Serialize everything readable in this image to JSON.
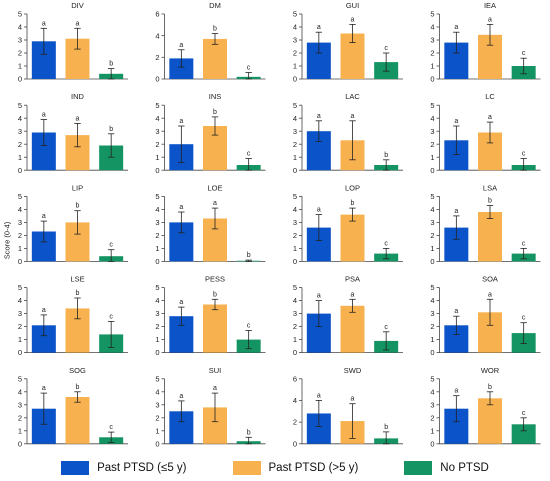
{
  "figure": {
    "ylabel": "Score (0-4)",
    "series_colors": [
      "#0a53c8",
      "#f7b24f",
      "#149463"
    ],
    "legend": [
      {
        "label": "Past PTSD (≤5 y)",
        "color": "#0a53c8"
      },
      {
        "label": "Past PTSD (>5 y)",
        "color": "#f7b24f"
      },
      {
        "label": "No PTSD",
        "color": "#149463"
      }
    ]
  },
  "chart_data": [
    {
      "type": "bar",
      "title": "DIV",
      "ylim": [
        0,
        5
      ],
      "yticks": [
        0,
        1,
        2,
        3,
        4,
        5
      ],
      "series": [
        {
          "name": "Past PTSD (≤5 y)",
          "values": [
            2.9
          ],
          "error": [
            1.0
          ],
          "sig": [
            "a"
          ]
        },
        {
          "name": "Past PTSD (>5 y)",
          "values": [
            3.1
          ],
          "error": [
            0.8
          ],
          "sig": [
            "a"
          ]
        },
        {
          "name": "No PTSD",
          "values": [
            0.4
          ],
          "error": [
            0.4
          ],
          "sig": [
            "b"
          ]
        }
      ]
    },
    {
      "type": "bar",
      "title": "DM",
      "ylim": [
        0,
        6
      ],
      "yticks": [
        0,
        2,
        4,
        6
      ],
      "series": [
        {
          "name": "Past PTSD (≤5 y)",
          "values": [
            1.9
          ],
          "error": [
            0.8
          ],
          "sig": [
            "a"
          ]
        },
        {
          "name": "Past PTSD (>5 y)",
          "values": [
            3.7
          ],
          "error": [
            0.5
          ],
          "sig": [
            "b"
          ]
        },
        {
          "name": "No PTSD",
          "values": [
            0.2
          ],
          "error": [
            0.4
          ],
          "sig": [
            "c"
          ]
        }
      ]
    },
    {
      "type": "bar",
      "title": "GUI",
      "ylim": [
        0,
        5
      ],
      "yticks": [
        0,
        1,
        2,
        3,
        4,
        5
      ],
      "series": [
        {
          "name": "Past PTSD (≤5 y)",
          "values": [
            2.8
          ],
          "error": [
            0.8
          ],
          "sig": [
            "a"
          ]
        },
        {
          "name": "Past PTSD (>5 y)",
          "values": [
            3.5
          ],
          "error": [
            0.7
          ],
          "sig": [
            "a"
          ]
        },
        {
          "name": "No PTSD",
          "values": [
            1.3
          ],
          "error": [
            0.7
          ],
          "sig": [
            "c"
          ]
        }
      ]
    },
    {
      "type": "bar",
      "title": "IEA",
      "ylim": [
        0,
        5
      ],
      "yticks": [
        0,
        1,
        2,
        3,
        4,
        5
      ],
      "series": [
        {
          "name": "Past PTSD (≤5 y)",
          "values": [
            2.8
          ],
          "error": [
            0.8
          ],
          "sig": [
            "a"
          ]
        },
        {
          "name": "Past PTSD (>5 y)",
          "values": [
            3.4
          ],
          "error": [
            0.8
          ],
          "sig": [
            "a"
          ]
        },
        {
          "name": "No PTSD",
          "values": [
            1.0
          ],
          "error": [
            0.6
          ],
          "sig": [
            "c"
          ]
        }
      ]
    },
    {
      "type": "bar",
      "title": "IND",
      "ylim": [
        0,
        5
      ],
      "yticks": [
        0,
        1,
        2,
        3,
        4,
        5
      ],
      "series": [
        {
          "name": "Past PTSD (≤5 y)",
          "values": [
            2.9
          ],
          "error": [
            1.0
          ],
          "sig": [
            "a"
          ]
        },
        {
          "name": "Past PTSD (>5 y)",
          "values": [
            2.7
          ],
          "error": [
            0.9
          ],
          "sig": [
            "a"
          ]
        },
        {
          "name": "No PTSD",
          "values": [
            1.9
          ],
          "error": [
            0.9
          ],
          "sig": [
            "b"
          ]
        }
      ]
    },
    {
      "type": "bar",
      "title": "INS",
      "ylim": [
        0,
        5
      ],
      "yticks": [
        0,
        1,
        2,
        3,
        4,
        5
      ],
      "series": [
        {
          "name": "Past PTSD (≤5 y)",
          "values": [
            2.0
          ],
          "error": [
            1.4
          ],
          "sig": [
            "a"
          ]
        },
        {
          "name": "Past PTSD (>5 y)",
          "values": [
            3.4
          ],
          "error": [
            0.7
          ],
          "sig": [
            "b"
          ]
        },
        {
          "name": "No PTSD",
          "values": [
            0.4
          ],
          "error": [
            0.5
          ],
          "sig": [
            "c"
          ]
        }
      ]
    },
    {
      "type": "bar",
      "title": "LAC",
      "ylim": [
        0,
        5
      ],
      "yticks": [
        0,
        1,
        2,
        3,
        4,
        5
      ],
      "series": [
        {
          "name": "Past PTSD (≤5 y)",
          "values": [
            3.0
          ],
          "error": [
            0.8
          ],
          "sig": [
            "a"
          ]
        },
        {
          "name": "Past PTSD (>5 y)",
          "values": [
            2.3
          ],
          "error": [
            1.5
          ],
          "sig": [
            "a"
          ]
        },
        {
          "name": "No PTSD",
          "values": [
            0.4
          ],
          "error": [
            0.4
          ],
          "sig": [
            "b"
          ]
        }
      ]
    },
    {
      "type": "bar",
      "title": "LC",
      "ylim": [
        0,
        5
      ],
      "yticks": [
        0,
        1,
        2,
        3,
        4,
        5
      ],
      "series": [
        {
          "name": "Past PTSD (≤5 y)",
          "values": [
            2.3
          ],
          "error": [
            1.1
          ],
          "sig": [
            "a"
          ]
        },
        {
          "name": "Past PTSD (>5 y)",
          "values": [
            2.9
          ],
          "error": [
            0.8
          ],
          "sig": [
            "a"
          ]
        },
        {
          "name": "No PTSD",
          "values": [
            0.4
          ],
          "error": [
            0.5
          ],
          "sig": [
            "c"
          ]
        }
      ]
    },
    {
      "type": "bar",
      "title": "LIP",
      "ylim": [
        0,
        5
      ],
      "yticks": [
        0,
        1,
        2,
        3,
        4,
        5
      ],
      "series": [
        {
          "name": "Past PTSD (≤5 y)",
          "values": [
            2.3
          ],
          "error": [
            0.8
          ],
          "sig": [
            "a"
          ]
        },
        {
          "name": "Past PTSD (>5 y)",
          "values": [
            3.0
          ],
          "error": [
            0.9
          ],
          "sig": [
            "b"
          ]
        },
        {
          "name": "No PTSD",
          "values": [
            0.4
          ],
          "error": [
            0.5
          ],
          "sig": [
            "c"
          ]
        }
      ]
    },
    {
      "type": "bar",
      "title": "LOE",
      "ylim": [
        0,
        5
      ],
      "yticks": [
        0,
        1,
        2,
        3,
        4,
        5
      ],
      "series": [
        {
          "name": "Past PTSD (≤5 y)",
          "values": [
            3.0
          ],
          "error": [
            0.8
          ],
          "sig": [
            "a"
          ]
        },
        {
          "name": "Past PTSD (>5 y)",
          "values": [
            3.3
          ],
          "error": [
            0.8
          ],
          "sig": [
            "a"
          ]
        },
        {
          "name": "No PTSD",
          "values": [
            0.05
          ],
          "error": [
            0.05
          ],
          "sig": [
            "b"
          ]
        }
      ]
    },
    {
      "type": "bar",
      "title": "LOP",
      "ylim": [
        0,
        5
      ],
      "yticks": [
        0,
        1,
        2,
        3,
        4,
        5
      ],
      "series": [
        {
          "name": "Past PTSD (≤5 y)",
          "values": [
            2.6
          ],
          "error": [
            1.0
          ],
          "sig": [
            "a"
          ]
        },
        {
          "name": "Past PTSD (>5 y)",
          "values": [
            3.6
          ],
          "error": [
            0.5
          ],
          "sig": [
            "b"
          ]
        },
        {
          "name": "No PTSD",
          "values": [
            0.6
          ],
          "error": [
            0.4
          ],
          "sig": [
            "c"
          ]
        }
      ]
    },
    {
      "type": "bar",
      "title": "LSA",
      "ylim": [
        0,
        5
      ],
      "yticks": [
        0,
        1,
        2,
        3,
        4,
        5
      ],
      "series": [
        {
          "name": "Past PTSD (≤5 y)",
          "values": [
            2.6
          ],
          "error": [
            0.9
          ],
          "sig": [
            "a"
          ]
        },
        {
          "name": "Past PTSD (>5 y)",
          "values": [
            3.8
          ],
          "error": [
            0.5
          ],
          "sig": [
            "b"
          ]
        },
        {
          "name": "No PTSD",
          "values": [
            0.6
          ],
          "error": [
            0.4
          ],
          "sig": [
            "c"
          ]
        }
      ]
    },
    {
      "type": "bar",
      "title": "LSE",
      "ylim": [
        0,
        5
      ],
      "yticks": [
        0,
        1,
        2,
        3,
        4,
        5
      ],
      "series": [
        {
          "name": "Past PTSD (≤5 y)",
          "values": [
            2.1
          ],
          "error": [
            0.8
          ],
          "sig": [
            "a"
          ]
        },
        {
          "name": "Past PTSD (>5 y)",
          "values": [
            3.4
          ],
          "error": [
            0.8
          ],
          "sig": [
            "b"
          ]
        },
        {
          "name": "No PTSD",
          "values": [
            1.4
          ],
          "error": [
            1.0
          ],
          "sig": [
            "c"
          ]
        }
      ]
    },
    {
      "type": "bar",
      "title": "PESS",
      "ylim": [
        0,
        5
      ],
      "yticks": [
        0,
        1,
        2,
        3,
        4,
        5
      ],
      "series": [
        {
          "name": "Past PTSD (≤5 y)",
          "values": [
            2.8
          ],
          "error": [
            0.7
          ],
          "sig": [
            "a"
          ]
        },
        {
          "name": "Past PTSD (>5 y)",
          "values": [
            3.7
          ],
          "error": [
            0.4
          ],
          "sig": [
            "b"
          ]
        },
        {
          "name": "No PTSD",
          "values": [
            1.0
          ],
          "error": [
            0.7
          ],
          "sig": [
            "c"
          ]
        }
      ]
    },
    {
      "type": "bar",
      "title": "PSA",
      "ylim": [
        0,
        5
      ],
      "yticks": [
        0,
        1,
        2,
        3,
        4,
        5
      ],
      "series": [
        {
          "name": "Past PTSD (≤5 y)",
          "values": [
            3.0
          ],
          "error": [
            1.0
          ],
          "sig": [
            "a"
          ]
        },
        {
          "name": "Past PTSD (>5 y)",
          "values": [
            3.6
          ],
          "error": [
            0.5
          ],
          "sig": [
            "a"
          ]
        },
        {
          "name": "No PTSD",
          "values": [
            0.9
          ],
          "error": [
            0.7
          ],
          "sig": [
            "c"
          ]
        }
      ]
    },
    {
      "type": "bar",
      "title": "SOA",
      "ylim": [
        0,
        5
      ],
      "yticks": [
        0,
        1,
        2,
        3,
        4,
        5
      ],
      "series": [
        {
          "name": "Past PTSD (≤5 y)",
          "values": [
            2.1
          ],
          "error": [
            0.7
          ],
          "sig": [
            "a"
          ]
        },
        {
          "name": "Past PTSD (>5 y)",
          "values": [
            3.1
          ],
          "error": [
            1.0
          ],
          "sig": [
            "a"
          ]
        },
        {
          "name": "No PTSD",
          "values": [
            1.5
          ],
          "error": [
            0.8
          ],
          "sig": [
            "c"
          ]
        }
      ]
    },
    {
      "type": "bar",
      "title": "SOG",
      "ylim": [
        0,
        5
      ],
      "yticks": [
        0,
        1,
        2,
        3,
        4,
        5
      ],
      "series": [
        {
          "name": "Past PTSD (≤5 y)",
          "values": [
            2.7
          ],
          "error": [
            1.2
          ],
          "sig": [
            "a"
          ]
        },
        {
          "name": "Past PTSD (>5 y)",
          "values": [
            3.6
          ],
          "error": [
            0.4
          ],
          "sig": [
            "b"
          ]
        },
        {
          "name": "No PTSD",
          "values": [
            0.5
          ],
          "error": [
            0.4
          ],
          "sig": [
            "c"
          ]
        }
      ]
    },
    {
      "type": "bar",
      "title": "SUI",
      "ylim": [
        0,
        5
      ],
      "yticks": [
        0,
        1,
        2,
        3,
        4,
        5
      ],
      "series": [
        {
          "name": "Past PTSD (≤5 y)",
          "values": [
            2.5
          ],
          "error": [
            0.8
          ],
          "sig": [
            "a"
          ]
        },
        {
          "name": "Past PTSD (>5 y)",
          "values": [
            2.8
          ],
          "error": [
            1.1
          ],
          "sig": [
            "a"
          ]
        },
        {
          "name": "No PTSD",
          "values": [
            0.2
          ],
          "error": [
            0.3
          ],
          "sig": [
            "b"
          ]
        }
      ]
    },
    {
      "type": "bar",
      "title": "SWD",
      "ylim": [
        0,
        6
      ],
      "yticks": [
        0,
        2,
        4,
        6
      ],
      "series": [
        {
          "name": "Past PTSD (≤5 y)",
          "values": [
            2.8
          ],
          "error": [
            1.2
          ],
          "sig": [
            "a"
          ]
        },
        {
          "name": "Past PTSD (>5 y)",
          "values": [
            2.1
          ],
          "error": [
            1.6
          ],
          "sig": [
            "a"
          ]
        },
        {
          "name": "No PTSD",
          "values": [
            0.5
          ],
          "error": [
            0.6
          ],
          "sig": [
            "b"
          ]
        }
      ]
    },
    {
      "type": "bar",
      "title": "WOR",
      "ylim": [
        0,
        5
      ],
      "yticks": [
        0,
        1,
        2,
        3,
        4,
        5
      ],
      "series": [
        {
          "name": "Past PTSD (≤5 y)",
          "values": [
            2.7
          ],
          "error": [
            1.0
          ],
          "sig": [
            "a"
          ]
        },
        {
          "name": "Past PTSD (>5 y)",
          "values": [
            3.5
          ],
          "error": [
            0.5
          ],
          "sig": [
            "b"
          ]
        },
        {
          "name": "No PTSD",
          "values": [
            1.5
          ],
          "error": [
            0.5
          ],
          "sig": [
            "c"
          ]
        }
      ]
    }
  ]
}
